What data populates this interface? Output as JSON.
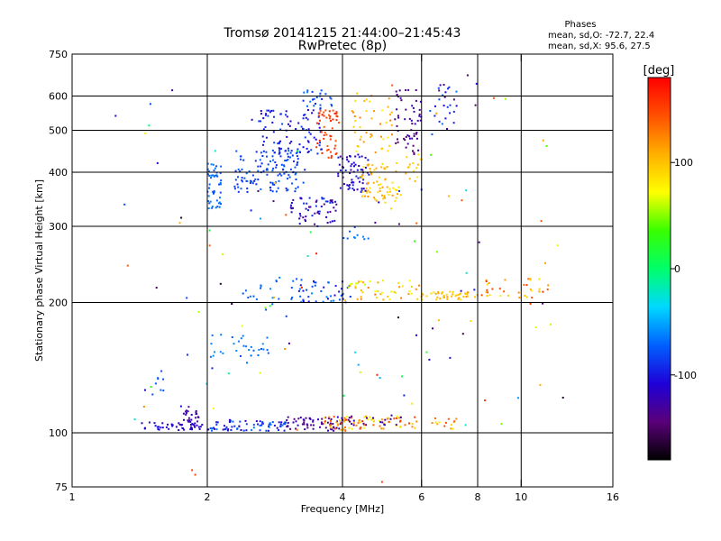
{
  "chart_data": {
    "type": "scatter",
    "title": "Tromsø 20141215 21:44:00–21:45:43",
    "subtitle": "RwPretec (8p)",
    "stats": {
      "heading": "Phases",
      "line_o": "mean, sd,O: -72.7, 22.4",
      "line_x": "mean, sd,X:  95.6, 27.5"
    },
    "xlabel": "Frequency [MHz]",
    "ylabel": "Stationary phase Virtual Height [km]",
    "x_scale": "log",
    "y_scale": "log",
    "xlim": [
      1,
      16
    ],
    "ylim": [
      75,
      750
    ],
    "x_ticks": [
      1,
      2,
      4,
      6,
      8,
      10,
      16
    ],
    "x_tick_labels": [
      "1",
      "2",
      "4",
      "6",
      "8",
      "10",
      "16"
    ],
    "x_grid": [
      2,
      4,
      6,
      8,
      10
    ],
    "y_ticks": [
      75,
      100,
      200,
      300,
      400,
      500,
      600,
      750
    ],
    "y_tick_labels": [
      "75",
      "100",
      "200",
      "300",
      "400",
      "500",
      "600",
      "750"
    ],
    "y_grid": [
      100,
      200,
      300,
      400,
      500,
      600
    ],
    "grid": true,
    "colorbar": {
      "label": "[deg]",
      "range": [
        -180,
        180
      ],
      "ticks": [
        100,
        0,
        -100
      ],
      "tick_labels": [
        "100",
        "0",
        "-100"
      ],
      "colors": [
        "#000000",
        "#5a007a",
        "#1e00d8",
        "#0060ff",
        "#00d8ff",
        "#00ff6a",
        "#38ff00",
        "#ffff00",
        "#ffb000",
        "#ff5000",
        "#ff0000"
      ]
    },
    "clusters": [
      {
        "f": [
          1.45,
          1.95
        ],
        "h": [
          101,
          106
        ],
        "n": 45,
        "phase": [
          -125,
          -100
        ]
      },
      {
        "f": [
          1.75,
          1.95
        ],
        "h": [
          106,
          115
        ],
        "n": 22,
        "phase": [
          -135,
          -120
        ]
      },
      {
        "f": [
          2.0,
          3.0
        ],
        "h": [
          101,
          107
        ],
        "n": 70,
        "phase": [
          -120,
          -60
        ]
      },
      {
        "f": [
          3.0,
          4.0
        ],
        "h": [
          101,
          109
        ],
        "n": 60,
        "phase": [
          -150,
          -110
        ]
      },
      {
        "f": [
          3.6,
          4.1
        ],
        "h": [
          101,
          109
        ],
        "n": 25,
        "phase": [
          80,
          150
        ]
      },
      {
        "f": [
          4.0,
          6.0
        ],
        "h": [
          102,
          110
        ],
        "n": 55,
        "phase": [
          70,
          160
        ]
      },
      {
        "f": [
          4.1,
          5.5
        ],
        "h": [
          103,
          110
        ],
        "n": 20,
        "phase": [
          -140,
          -120
        ]
      },
      {
        "f": [
          6.2,
          7.2
        ],
        "h": [
          102,
          108
        ],
        "n": 14,
        "phase": [
          80,
          150
        ]
      },
      {
        "f": [
          1.5,
          1.6
        ],
        "h": [
          122,
          140
        ],
        "n": 8,
        "phase": [
          -80,
          -70
        ]
      },
      {
        "f": [
          2.0,
          2.8
        ],
        "h": [
          145,
          170
        ],
        "n": 30,
        "phase": [
          -75,
          -55
        ]
      },
      {
        "f": [
          2.4,
          3.3
        ],
        "h": [
          190,
          230
        ],
        "n": 25,
        "phase": [
          -80,
          -60
        ]
      },
      {
        "f": [
          3.2,
          4.2
        ],
        "h": [
          200,
          225
        ],
        "n": 40,
        "phase": [
          -110,
          -60
        ]
      },
      {
        "f": [
          4.1,
          6.0
        ],
        "h": [
          203,
          225
        ],
        "n": 45,
        "phase": [
          60,
          130
        ]
      },
      {
        "f": [
          6.0,
          8.0
        ],
        "h": [
          203,
          212
        ],
        "n": 45,
        "phase": [
          80,
          120
        ]
      },
      {
        "f": [
          8.0,
          11.5
        ],
        "h": [
          205,
          228
        ],
        "n": 35,
        "phase": [
          80,
          160
        ]
      },
      {
        "f": [
          2.0,
          2.15
        ],
        "h": [
          330,
          420
        ],
        "n": 50,
        "phase": [
          -80,
          -60
        ]
      },
      {
        "f": [
          2.3,
          3.3
        ],
        "h": [
          360,
          450
        ],
        "n": 130,
        "phase": [
          -95,
          -70
        ]
      },
      {
        "f": [
          2.6,
          3.6
        ],
        "h": [
          440,
          560
        ],
        "n": 90,
        "phase": [
          -120,
          -80
        ]
      },
      {
        "f": [
          3.0,
          3.9
        ],
        "h": [
          300,
          350
        ],
        "n": 60,
        "phase": [
          -140,
          -80
        ]
      },
      {
        "f": [
          3.5,
          3.9
        ],
        "h": [
          430,
          560
        ],
        "n": 50,
        "phase": [
          140,
          170
        ]
      },
      {
        "f": [
          3.2,
          3.8
        ],
        "h": [
          560,
          620
        ],
        "n": 25,
        "phase": [
          -100,
          -60
        ]
      },
      {
        "f": [
          3.9,
          4.6
        ],
        "h": [
          360,
          440
        ],
        "n": 70,
        "phase": [
          -130,
          -90
        ]
      },
      {
        "f": [
          4.4,
          5.4
        ],
        "h": [
          340,
          420
        ],
        "n": 70,
        "phase": [
          80,
          120
        ]
      },
      {
        "f": [
          4.2,
          5.2
        ],
        "h": [
          440,
          620
        ],
        "n": 45,
        "phase": [
          70,
          130
        ]
      },
      {
        "f": [
          5.2,
          6.0
        ],
        "h": [
          440,
          620
        ],
        "n": 55,
        "phase": [
          -150,
          -120
        ]
      },
      {
        "f": [
          5.5,
          6.0
        ],
        "h": [
          380,
          440
        ],
        "n": 15,
        "phase": [
          80,
          110
        ]
      },
      {
        "f": [
          6.4,
          7.2
        ],
        "h": [
          500,
          640
        ],
        "n": 25,
        "phase": [
          -150,
          -60
        ]
      },
      {
        "f": [
          4.0,
          4.6
        ],
        "h": [
          280,
          300
        ],
        "n": 10,
        "phase": [
          -80,
          -60
        ]
      },
      {
        "f": [
          1.3,
          12.5
        ],
        "h": [
          100,
          650
        ],
        "n": 110,
        "phase": [
          -170,
          170
        ]
      }
    ],
    "outliers": [
      {
        "f": 1.25,
        "h": 540,
        "phase": -110
      },
      {
        "f": 1.85,
        "h": 82,
        "phase": 150
      },
      {
        "f": 1.88,
        "h": 80,
        "phase": 150
      },
      {
        "f": 4.9,
        "h": 77,
        "phase": 150
      },
      {
        "f": 7.6,
        "h": 670,
        "phase": -150
      },
      {
        "f": 11.4,
        "h": 460,
        "phase": 40
      },
      {
        "f": 1.55,
        "h": 420,
        "phase": -110
      },
      {
        "f": 1.8,
        "h": 205,
        "phase": -80
      }
    ]
  }
}
